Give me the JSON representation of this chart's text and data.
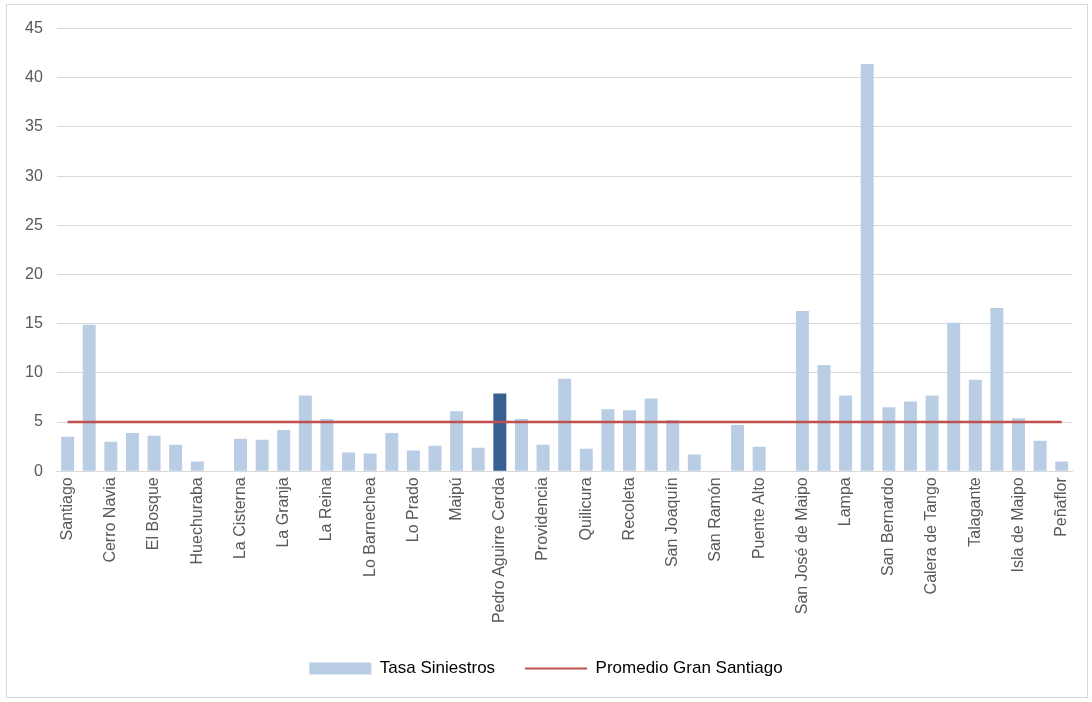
{
  "chart_data": {
    "type": "bar",
    "categories": [
      "Santiago",
      null,
      "Cerro Navia",
      null,
      "El Bosque",
      null,
      "Huechuraba",
      null,
      "La Cisterna",
      null,
      "La Granja",
      null,
      "La Reina",
      null,
      "Lo Barnechea",
      null,
      "Lo Prado",
      null,
      "Maipú",
      null,
      "Pedro Aguirre Cerda",
      null,
      "Providencia",
      null,
      "Quilicura",
      null,
      "Recoleta",
      null,
      "San Joaquín",
      null,
      "San Ramón",
      null,
      "Puente Alto",
      null,
      "San José de Maipo",
      null,
      "Lampa",
      null,
      "San Bernardo",
      null,
      "Calera de Tango",
      null,
      "Talagante",
      null,
      "Isla de Maipo",
      null,
      "Peñaflor"
    ],
    "series": [
      {
        "name": "Tasa Siniestros",
        "colors": [
          "#b9cde5",
          "#b9cde5",
          "#b9cde5",
          "#b9cde5",
          "#b9cde5",
          "#b9cde5",
          "#b9cde5",
          "#b9cde5",
          "#b9cde5",
          "#b9cde5",
          "#b9cde5",
          "#b9cde5",
          "#b9cde5",
          "#b9cde5",
          "#b9cde5",
          "#b9cde5",
          "#b9cde5",
          "#b9cde5",
          "#b9cde5",
          "#b9cde5",
          "#376092",
          "#b9cde5",
          "#b9cde5",
          "#b9cde5",
          "#b9cde5",
          "#b9cde5",
          "#b9cde5",
          "#b9cde5",
          "#b9cde5",
          "#b9cde5",
          "#b9cde5",
          "#b9cde5",
          "#b9cde5",
          "#b9cde5",
          "#b9cde5",
          "#b9cde5",
          "#b9cde5",
          "#b9cde5",
          "#b9cde5",
          "#b9cde5",
          "#b9cde5",
          "#b9cde5",
          "#b9cde5",
          "#b9cde5",
          "#b9cde5",
          "#b9cde5",
          "#b9cde5"
        ],
        "values": [
          3.5,
          14.9,
          3.0,
          3.9,
          3.6,
          2.7,
          1.0,
          0,
          3.3,
          3.2,
          4.2,
          7.7,
          5.3,
          1.9,
          1.8,
          3.9,
          2.1,
          2.6,
          6.1,
          2.4,
          7.9,
          5.3,
          2.7,
          9.4,
          2.3,
          6.3,
          6.2,
          7.4,
          5.2,
          1.7,
          0,
          4.7,
          2.5,
          0,
          16.3,
          10.8,
          7.7,
          41.4,
          6.5,
          7.1,
          7.7,
          15.1,
          9.3,
          16.6,
          5.4,
          3.1,
          1.0
        ]
      }
    ],
    "ylim": [
      0,
      45
    ],
    "yticks": [
      0,
      5,
      10,
      15,
      20,
      25,
      30,
      35,
      40,
      45
    ],
    "grid": "y",
    "legend": "bottom",
    "ref_lines": [
      {
        "axis": "y",
        "value": 5,
        "label": "Promedio Gran Santiago",
        "color": "#c0504d"
      }
    ]
  }
}
